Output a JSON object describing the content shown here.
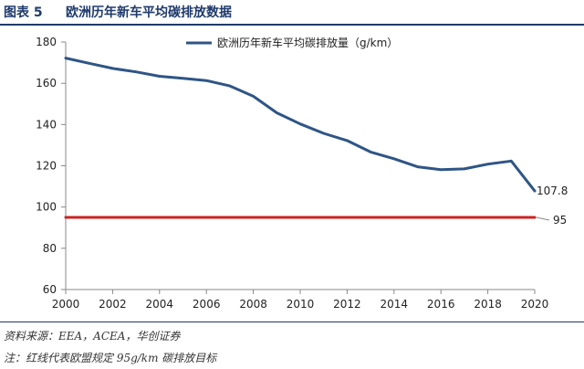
{
  "header": {
    "fig_label": "图表 5",
    "title": "欧洲历年新车平均碳排放数据"
  },
  "notes": {
    "source": "资料来源：EEA，ACEA，华创证券",
    "remark": "注：红线代表欧盟规定 95g/km 碳排放目标"
  },
  "chart_data": {
    "type": "line",
    "title": "",
    "xlabel": "",
    "ylabel": "",
    "xlim": [
      2000,
      2020
    ],
    "ylim": [
      60,
      180
    ],
    "x_ticks": [
      2000,
      2002,
      2004,
      2006,
      2008,
      2010,
      2012,
      2014,
      2016,
      2018,
      2020
    ],
    "y_ticks": [
      60,
      80,
      100,
      120,
      140,
      160,
      180
    ],
    "grid": false,
    "legend_position": "top-center",
    "series": [
      {
        "name": "欧洲历年新车平均碳排放量（g/km）",
        "color": "#2e5586",
        "x": [
          2000,
          2001,
          2002,
          2003,
          2004,
          2005,
          2006,
          2007,
          2008,
          2009,
          2010,
          2011,
          2012,
          2013,
          2014,
          2015,
          2016,
          2017,
          2018,
          2019,
          2020
        ],
        "y": [
          172.2,
          169.7,
          167.2,
          165.5,
          163.4,
          162.4,
          161.3,
          158.7,
          153.7,
          145.7,
          140.3,
          135.7,
          132.2,
          126.7,
          123.4,
          119.5,
          118.1,
          118.5,
          120.8,
          122.3,
          107.8
        ]
      },
      {
        "color": "#cc2222",
        "x": [
          2000,
          2020
        ],
        "y": [
          95,
          95
        ]
      }
    ],
    "annotations": [
      {
        "text": "107.8",
        "x": 2020,
        "y": 107.8
      },
      {
        "text": "95",
        "x": 2020,
        "y": 95
      }
    ]
  }
}
